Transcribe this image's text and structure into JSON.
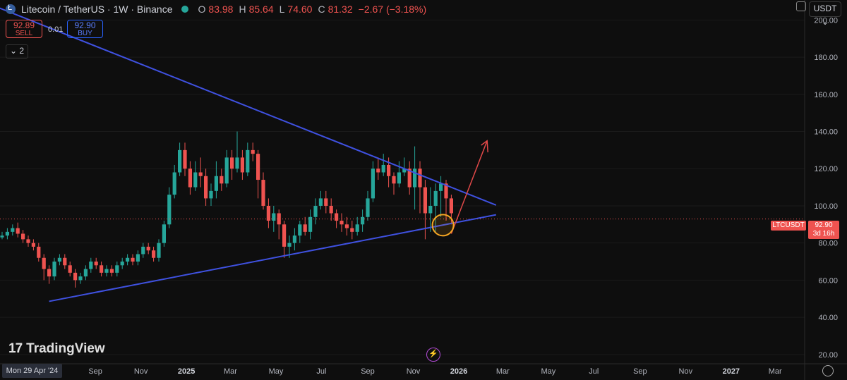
{
  "header": {
    "symbol_title": "Litecoin / TetherUS · 1W · Binance",
    "open_label": "O",
    "open": "83.98",
    "high_label": "H",
    "high": "85.64",
    "low_label": "L",
    "low": "74.60",
    "close_label": "C",
    "close": "81.32",
    "change": "−2.67 (−3.18%)"
  },
  "trade": {
    "sell_price": "92.89",
    "sell_label": "SELL",
    "spread": "0.01",
    "buy_price": "92.90",
    "buy_label": "BUY"
  },
  "layers_label": "2",
  "currency": "USDT",
  "brand": "TradingView",
  "date_cursor": "Mon 29 Apr '24",
  "last_price_tag": {
    "symbol": "LTCUSDT",
    "price": "92.90",
    "countdown": "3d 16h"
  },
  "colors": {
    "up": "#26a69a",
    "down": "#ef5350",
    "trendline": "#3f51e0",
    "arrow": "#e04848",
    "circle": "#f5a623",
    "background": "#0e0e0e"
  },
  "chart_data": {
    "type": "candlestick",
    "ylim": [
      15,
      210
    ],
    "y_ticks": [
      20,
      40,
      60,
      80,
      100,
      120,
      140,
      160,
      180,
      200
    ],
    "y_tick_labels": [
      "20.00",
      "40.00",
      "60.00",
      "80.00",
      "100.00",
      "120.00",
      "140.00",
      "160.00",
      "180.00",
      "200.00"
    ],
    "x_tick_labels": [
      "Sep",
      "Nov",
      "2025",
      "Mar",
      "May",
      "Jul",
      "Sep",
      "Nov",
      "2026",
      "Mar",
      "May",
      "Jul",
      "Sep",
      "Nov",
      "2027",
      "Mar"
    ],
    "x_tick_dates": [
      "2024-09-01",
      "2024-11-01",
      "2025-01-01",
      "2025-03-01",
      "2025-05-01",
      "2025-07-01",
      "2025-09-01",
      "2025-11-01",
      "2026-01-01",
      "2026-03-01",
      "2026-05-01",
      "2026-07-01",
      "2026-09-01",
      "2026-11-01",
      "2027-01-01",
      "2027-03-01"
    ],
    "bold_ticks": [
      "2025",
      "2026",
      "2027"
    ],
    "last_price": 92.9,
    "candles": [
      [
        0,
        83,
        84,
        86,
        82
      ],
      [
        1,
        84,
        86,
        88,
        82
      ],
      [
        2,
        86,
        88,
        90,
        84
      ],
      [
        3,
        88,
        85,
        91,
        83
      ],
      [
        4,
        85,
        82,
        87,
        80
      ],
      [
        5,
        82,
        80,
        84,
        78
      ],
      [
        6,
        80,
        78,
        82,
        76
      ],
      [
        7,
        78,
        72,
        80,
        70
      ],
      [
        8,
        72,
        66,
        74,
        60
      ],
      [
        9,
        66,
        62,
        68,
        58
      ],
      [
        10,
        62,
        70,
        72,
        60
      ],
      [
        11,
        70,
        72,
        74,
        68
      ],
      [
        12,
        72,
        68,
        74,
        66
      ],
      [
        13,
        68,
        64,
        70,
        62
      ],
      [
        14,
        64,
        60,
        66,
        56
      ],
      [
        15,
        60,
        62,
        64,
        58
      ],
      [
        16,
        62,
        66,
        68,
        60
      ],
      [
        17,
        66,
        70,
        72,
        64
      ],
      [
        18,
        70,
        68,
        72,
        66
      ],
      [
        19,
        68,
        64,
        70,
        62
      ],
      [
        20,
        64,
        66,
        68,
        62
      ],
      [
        21,
        66,
        64,
        68,
        62
      ],
      [
        22,
        64,
        68,
        70,
        62
      ],
      [
        23,
        68,
        70,
        72,
        66
      ],
      [
        24,
        70,
        72,
        74,
        68
      ],
      [
        25,
        72,
        70,
        74,
        68
      ],
      [
        26,
        70,
        74,
        76,
        68
      ],
      [
        27,
        74,
        78,
        80,
        72
      ],
      [
        28,
        78,
        76,
        80,
        74
      ],
      [
        29,
        76,
        72,
        78,
        70
      ],
      [
        30,
        72,
        80,
        82,
        70
      ],
      [
        31,
        80,
        90,
        92,
        78
      ],
      [
        32,
        90,
        106,
        110,
        88
      ],
      [
        33,
        106,
        118,
        122,
        104
      ],
      [
        34,
        118,
        130,
        134,
        116
      ],
      [
        35,
        130,
        120,
        134,
        116
      ],
      [
        36,
        120,
        110,
        124,
        106
      ],
      [
        37,
        110,
        118,
        124,
        108
      ],
      [
        38,
        118,
        116,
        126,
        110
      ],
      [
        39,
        116,
        104,
        120,
        100
      ],
      [
        40,
        104,
        108,
        112,
        100
      ],
      [
        41,
        108,
        116,
        124,
        104
      ],
      [
        42,
        116,
        112,
        120,
        108
      ],
      [
        43,
        112,
        126,
        130,
        110
      ],
      [
        44,
        126,
        120,
        130,
        114
      ],
      [
        45,
        120,
        126,
        140,
        118
      ],
      [
        46,
        126,
        118,
        130,
        114
      ],
      [
        47,
        118,
        130,
        134,
        116
      ],
      [
        48,
        130,
        128,
        134,
        124
      ],
      [
        49,
        128,
        114,
        130,
        104
      ],
      [
        50,
        114,
        100,
        118,
        98
      ],
      [
        51,
        100,
        92,
        104,
        88
      ],
      [
        52,
        92,
        96,
        100,
        86
      ],
      [
        53,
        96,
        90,
        98,
        82
      ],
      [
        54,
        90,
        78,
        92,
        72
      ],
      [
        55,
        78,
        80,
        84,
        72
      ],
      [
        56,
        80,
        84,
        88,
        76
      ],
      [
        57,
        84,
        90,
        92,
        80
      ],
      [
        58,
        90,
        86,
        94,
        84
      ],
      [
        59,
        86,
        94,
        98,
        82
      ],
      [
        60,
        94,
        100,
        104,
        90
      ],
      [
        61,
        100,
        104,
        108,
        98
      ],
      [
        62,
        104,
        100,
        108,
        96
      ],
      [
        63,
        100,
        96,
        104,
        92
      ],
      [
        64,
        96,
        92,
        98,
        88
      ],
      [
        65,
        92,
        90,
        96,
        86
      ],
      [
        66,
        90,
        88,
        94,
        84
      ],
      [
        67,
        88,
        86,
        92,
        82
      ],
      [
        68,
        86,
        90,
        94,
        84
      ],
      [
        69,
        90,
        94,
        98,
        86
      ],
      [
        70,
        94,
        104,
        108,
        92
      ],
      [
        71,
        104,
        120,
        124,
        102
      ],
      [
        72,
        120,
        118,
        126,
        114
      ],
      [
        73,
        118,
        122,
        128,
        116
      ],
      [
        74,
        122,
        116,
        126,
        110
      ],
      [
        75,
        116,
        112,
        118,
        106
      ],
      [
        76,
        112,
        118,
        124,
        110
      ],
      [
        77,
        118,
        120,
        126,
        116
      ],
      [
        78,
        120,
        110,
        124,
        106
      ],
      [
        79,
        110,
        120,
        132,
        98
      ],
      [
        80,
        120,
        110,
        124,
        96
      ],
      [
        81,
        110,
        96,
        114,
        82
      ],
      [
        82,
        96,
        100,
        110,
        86
      ],
      [
        83,
        100,
        108,
        112,
        86
      ],
      [
        84,
        108,
        112,
        116,
        94
      ],
      [
        85,
        112,
        104,
        114,
        92
      ],
      [
        86,
        104,
        96,
        106,
        90
      ]
    ]
  }
}
